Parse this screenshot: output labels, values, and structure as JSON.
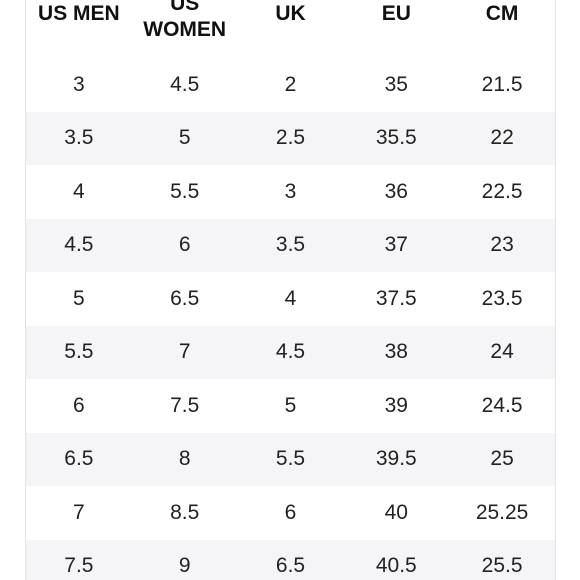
{
  "table": {
    "headers": [
      "US MEN",
      "US WOMEN",
      "UK",
      "EU",
      "CM"
    ],
    "rows": [
      [
        "3",
        "4.5",
        "2",
        "35",
        "21.5"
      ],
      [
        "3.5",
        "5",
        "2.5",
        "35.5",
        "22"
      ],
      [
        "4",
        "5.5",
        "3",
        "36",
        "22.5"
      ],
      [
        "4.5",
        "6",
        "3.5",
        "37",
        "23"
      ],
      [
        "5",
        "6.5",
        "4",
        "37.5",
        "23.5"
      ],
      [
        "5.5",
        "7",
        "4.5",
        "38",
        "24"
      ],
      [
        "6",
        "7.5",
        "5",
        "39",
        "24.5"
      ],
      [
        "6.5",
        "8",
        "5.5",
        "39.5",
        "25"
      ],
      [
        "7",
        "8.5",
        "6",
        "40",
        "25.25"
      ],
      [
        "7.5",
        "9",
        "6.5",
        "40.5",
        "25.5"
      ]
    ]
  }
}
